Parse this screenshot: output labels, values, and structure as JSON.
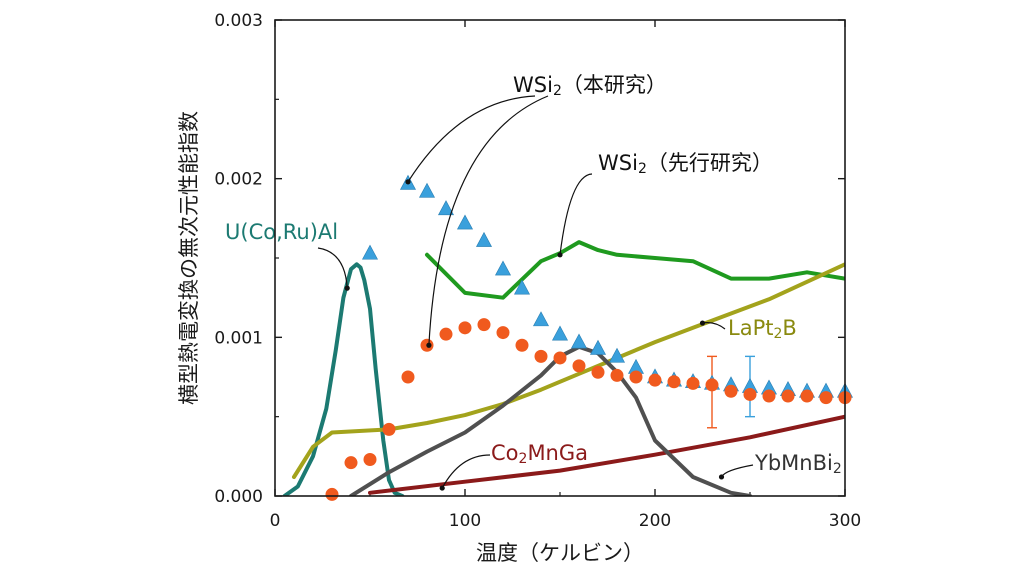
{
  "chart_data": {
    "type": "line",
    "title": "",
    "xlabel": "温度（ケルビン）",
    "ylabel": "横型熱電変換の無次元性能指数",
    "xlim": [
      0,
      300
    ],
    "ylim": [
      0,
      0.003
    ],
    "xticks": [
      0,
      100,
      200,
      300
    ],
    "xtick_labels": [
      "0",
      "100",
      "200",
      "300"
    ],
    "yticks": [
      0,
      0.001,
      0.002,
      0.003
    ],
    "ytick_labels": [
      "0.000",
      "0.001",
      "0.002",
      "0.003"
    ],
    "series": [
      {
        "name": "WSi2（本研究）triangles",
        "label": "WSi2（本研究）",
        "style": "triangle",
        "color": "#3aa0dc",
        "x": [
          50,
          70,
          80,
          90,
          100,
          110,
          120,
          130,
          140,
          150,
          160,
          170,
          180,
          190,
          200,
          210,
          220,
          230,
          240,
          250,
          260,
          270,
          280,
          290,
          300
        ],
        "y": [
          0.00153,
          0.00197,
          0.00192,
          0.00181,
          0.00172,
          0.00161,
          0.00143,
          0.00131,
          0.00111,
          0.00102,
          0.00097,
          0.00093,
          0.00088,
          0.00081,
          0.00075,
          0.00073,
          0.00072,
          0.00071,
          0.0007,
          0.00069,
          0.00068,
          0.00067,
          0.00066,
          0.00066,
          0.00066
        ]
      },
      {
        "name": "WSi2（本研究）circles",
        "label": "WSi2（本研究）",
        "style": "circle",
        "color": "#f05a1e",
        "x": [
          30,
          40,
          50,
          60,
          70,
          80,
          90,
          100,
          110,
          120,
          130,
          140,
          150,
          160,
          170,
          180,
          190,
          200,
          210,
          220,
          230,
          240,
          250,
          260,
          270,
          280,
          290,
          300
        ],
        "y": [
          1e-05,
          0.00021,
          0.00023,
          0.00042,
          0.00075,
          0.00095,
          0.00102,
          0.00106,
          0.00108,
          0.00103,
          0.00095,
          0.00088,
          0.00087,
          0.00082,
          0.00078,
          0.00076,
          0.00075,
          0.00073,
          0.00072,
          0.00071,
          0.0007,
          0.00066,
          0.00064,
          0.00063,
          0.00063,
          0.00063,
          0.00062,
          0.00062
        ]
      },
      {
        "name": "WSi2（先行研究）",
        "style": "line",
        "color": "#1f9a1f",
        "x": [
          80,
          100,
          120,
          140,
          150,
          160,
          170,
          180,
          200,
          220,
          240,
          260,
          280,
          300
        ],
        "y": [
          0.00152,
          0.00128,
          0.00125,
          0.00148,
          0.00153,
          0.0016,
          0.00155,
          0.00152,
          0.0015,
          0.00148,
          0.00137,
          0.00137,
          0.00141,
          0.00137
        ]
      },
      {
        "name": "U(Co,Ru)Al",
        "style": "line",
        "color": "#1c7a72",
        "x": [
          5,
          12,
          20,
          27,
          32,
          36,
          40,
          43,
          45,
          47,
          50,
          53,
          57,
          60,
          63,
          67
        ],
        "y": [
          0,
          6e-05,
          0.00025,
          0.00055,
          0.00092,
          0.00125,
          0.00143,
          0.00146,
          0.00144,
          0.00136,
          0.00118,
          0.0008,
          0.00035,
          0.0001,
          2e-05,
          0
        ]
      },
      {
        "name": "LaPt2B",
        "style": "line",
        "color": "#a3a31c",
        "x": [
          10,
          20,
          30,
          60,
          80,
          100,
          120,
          140,
          160,
          180,
          200,
          220,
          240,
          260,
          280,
          300
        ],
        "y": [
          0.00012,
          0.00031,
          0.0004,
          0.00042,
          0.00046,
          0.00051,
          0.00058,
          0.00067,
          0.00077,
          0.00087,
          0.00097,
          0.00106,
          0.00115,
          0.00124,
          0.00135,
          0.00146
        ]
      },
      {
        "name": "Co2MnGa",
        "style": "line",
        "color": "#8b1a1a",
        "x": [
          50,
          100,
          150,
          200,
          250,
          300
        ],
        "y": [
          2e-05,
          9e-05,
          0.00016,
          0.00026,
          0.00037,
          0.0005
        ]
      },
      {
        "name": "YbMnBi2",
        "style": "line",
        "color": "#505050",
        "x": [
          40,
          60,
          80,
          100,
          120,
          140,
          150,
          160,
          170,
          180,
          190,
          200,
          220,
          240,
          250
        ],
        "y": [
          0,
          0.00015,
          0.00028,
          0.0004,
          0.00057,
          0.00076,
          0.00088,
          0.00094,
          0.0009,
          0.00078,
          0.00062,
          0.00035,
          0.00012,
          2e-05,
          0
        ]
      }
    ],
    "error_bars": [
      {
        "color": "#f05a1e",
        "x": 230,
        "y": 0.00072,
        "low": 0.00043,
        "high": 0.00088
      },
      {
        "color": "#3aa0dc",
        "x": 250,
        "y": 0.0007,
        "low": 0.0005,
        "high": 0.00088
      }
    ],
    "annotations": [
      {
        "text": "WSi2（本研究）",
        "base": "WSi",
        "sub": "2",
        "suffix": "（本研究）",
        "color": "#111111",
        "targets": [
          [
            70,
            0.00198
          ],
          [
            81,
            0.00095
          ]
        ]
      },
      {
        "text": "WSi2（先行研究）",
        "base": "WSi",
        "sub": "2",
        "suffix": "（先行研究）",
        "color": "#111111",
        "targets": [
          [
            150,
            0.00152
          ]
        ]
      },
      {
        "text": "U(Co,Ru)Al",
        "color": "#1c7a72",
        "targets": [
          [
            38,
            0.00131
          ]
        ]
      },
      {
        "text": "LaPt2B",
        "base": "LaPt",
        "sub": "2",
        "suffix": "B",
        "color": "#8a8a10",
        "targets": [
          [
            225,
            0.00109
          ]
        ]
      },
      {
        "text": "Co2MnGa",
        "base": "Co",
        "sub": "2",
        "suffix": "MnGa",
        "color": "#8b1a1a",
        "targets": [
          [
            88,
            5e-05
          ]
        ]
      },
      {
        "text": "YbMnBi2",
        "base": "YbMnBi",
        "sub": "2",
        "suffix": "",
        "color": "#333333",
        "targets": [
          [
            235,
            0.00012
          ]
        ]
      }
    ]
  }
}
